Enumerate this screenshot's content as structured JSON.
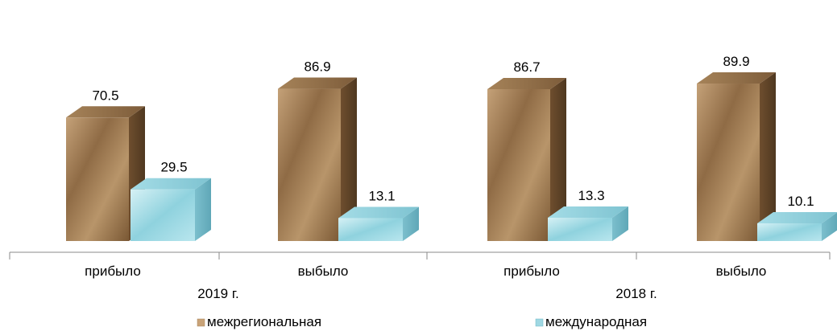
{
  "chart_data": {
    "type": "bar",
    "categories": [
      "прибыло",
      "выбыло",
      "прибыло",
      "выбыло"
    ],
    "groups": [
      {
        "label": "2019 г.",
        "categories": [
          0,
          1
        ]
      },
      {
        "label": "2018 г.",
        "categories": [
          2,
          3
        ]
      }
    ],
    "series": [
      {
        "name": "межрегиональная",
        "values": [
          70.5,
          86.9,
          86.7,
          89.9
        ],
        "color": "#b08a5e"
      },
      {
        "name": "международная",
        "values": [
          29.5,
          13.1,
          13.3,
          10.1
        ],
        "color": "#9fd8e3"
      }
    ],
    "ylim": [
      0,
      100
    ],
    "grid": false,
    "legend_position": "bottom",
    "style": "3d"
  }
}
